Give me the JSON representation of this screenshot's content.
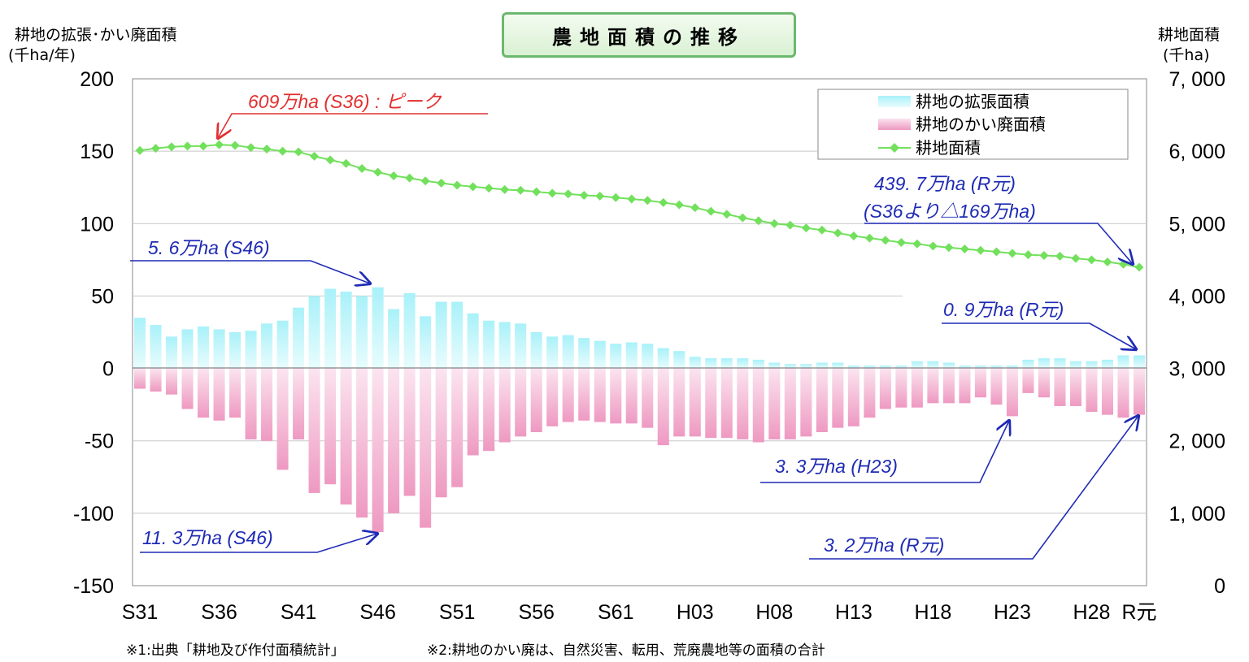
{
  "header": {
    "title": "農地面積の推移",
    "left_axis_title": "耕地の拡張･かい廃面積",
    "left_axis_unit": "(千ha/年)",
    "right_axis_title": "耕地面積",
    "right_axis_unit": "(千ha)"
  },
  "legend": {
    "expansion": "耕地の拡張面積",
    "abandonment": "耕地のかい廃面積",
    "area": "耕地面積"
  },
  "annotations": {
    "peak": "609万ha (S36) : ピーク",
    "current_1": "439. 7万ha (R元)",
    "current_2": "(S36より△169万ha)",
    "exp_s46": "5. 6万ha (S46)",
    "exp_r1": "0. 9万ha (R元)",
    "aba_s46": "11. 3万ha (S46)",
    "aba_h23": "3. 3万ha (H23)",
    "aba_r1": "3. 2万ha (R元)"
  },
  "footnotes": {
    "note1": "※1:出典「耕地及び作付面積統計」",
    "note2": "※2:耕地のかい廃は、自然災害、転用、荒廃農地等の面積の合計"
  },
  "colors": {
    "expansion_top": "#a9f1f9",
    "expansion_bottom": "#e8fcfd",
    "abandonment_top": "#fbe4ef",
    "abandonment_bottom": "#ee99c1",
    "area_line": "#72e05c",
    "annotation_blue": "#1f2bb5",
    "annotation_red": "#e22f2f"
  },
  "chart_data": {
    "type": "bar",
    "x": [
      "S31",
      "S32",
      "S33",
      "S34",
      "S35",
      "S36",
      "S37",
      "S38",
      "S39",
      "S40",
      "S41",
      "S42",
      "S43",
      "S44",
      "S45",
      "S46",
      "S47",
      "S48",
      "S49",
      "S50",
      "S51",
      "S52",
      "S53",
      "S54",
      "S55",
      "S56",
      "S57",
      "S58",
      "S59",
      "S60",
      "S61",
      "S62",
      "S63",
      "H01",
      "H02",
      "H03",
      "H04",
      "H05",
      "H06",
      "H07",
      "H08",
      "H09",
      "H10",
      "H11",
      "H12",
      "H13",
      "H14",
      "H15",
      "H16",
      "H17",
      "H18",
      "H19",
      "H20",
      "H21",
      "H22",
      "H23",
      "H24",
      "H25",
      "H26",
      "H27",
      "H28",
      "H29",
      "H30",
      "R元"
    ],
    "x_tick_labels": [
      "S31",
      "S36",
      "S41",
      "S46",
      "S51",
      "S56",
      "S61",
      "H03",
      "H08",
      "H13",
      "H18",
      "H23",
      "H28",
      "R元"
    ],
    "y_left": {
      "ylim": [
        -150,
        200
      ],
      "ticks": [
        "200",
        "150",
        "100",
        "50",
        "0",
        "-50",
        "-100",
        "-150"
      ]
    },
    "y_right": {
      "ylim": [
        0,
        7000
      ],
      "ticks": [
        "7, 000",
        "6, 000",
        "5, 000",
        "4, 000",
        "3, 000",
        "2, 000",
        "1, 000",
        "0"
      ]
    },
    "series": [
      {
        "name": "耕地の拡張面積",
        "axis": "left",
        "values": [
          35,
          30,
          22,
          27,
          29,
          27,
          25,
          26,
          31,
          33,
          42,
          50,
          55,
          53,
          50,
          56,
          41,
          52,
          36,
          46,
          46,
          38,
          33,
          32,
          31,
          25,
          22,
          23,
          21,
          19,
          17,
          18,
          17,
          14,
          12,
          8,
          7,
          7,
          7,
          6,
          4,
          3,
          3,
          4,
          4,
          2,
          2,
          2,
          2,
          5,
          5,
          4,
          2,
          2,
          2,
          2,
          6,
          7,
          7,
          5,
          5,
          6,
          9,
          9
        ]
      },
      {
        "name": "耕地のかい廃面積",
        "axis": "left",
        "values": [
          -14,
          -16,
          -18,
          -28,
          -34,
          -36,
          -34,
          -49,
          -50,
          -70,
          -49,
          -86,
          -80,
          -94,
          -103,
          -113,
          -100,
          -88,
          -110,
          -89,
          -82,
          -60,
          -57,
          -51,
          -47,
          -44,
          -40,
          -37,
          -36,
          -37,
          -38,
          -38,
          -41,
          -53,
          -47,
          -47,
          -48,
          -48,
          -49,
          -51,
          -49,
          -49,
          -47,
          -44,
          -41,
          -40,
          -34,
          -28,
          -27,
          -27,
          -24,
          -24,
          -24,
          -20,
          -25,
          -33,
          -17,
          -20,
          -26,
          -26,
          -30,
          -32,
          -34,
          -32
        ]
      },
      {
        "name": "耕地面積",
        "axis": "right",
        "type": "line",
        "values": [
          6010,
          6040,
          6060,
          6070,
          6070,
          6090,
          6080,
          6050,
          6030,
          6000,
          5990,
          5930,
          5880,
          5830,
          5760,
          5710,
          5660,
          5630,
          5590,
          5560,
          5530,
          5510,
          5490,
          5470,
          5460,
          5440,
          5420,
          5410,
          5390,
          5380,
          5360,
          5340,
          5320,
          5290,
          5260,
          5220,
          5170,
          5130,
          5080,
          5040,
          5000,
          4980,
          4940,
          4910,
          4870,
          4830,
          4800,
          4770,
          4740,
          4720,
          4690,
          4670,
          4650,
          4630,
          4610,
          4590,
          4570,
          4560,
          4550,
          4520,
          4500,
          4470,
          4440,
          4397
        ]
      }
    ]
  }
}
